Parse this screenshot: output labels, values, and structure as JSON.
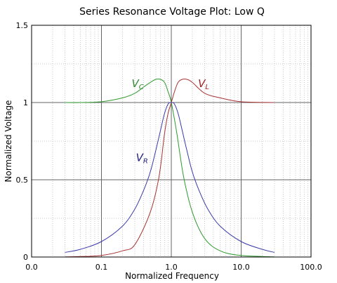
{
  "chart_data": {
    "type": "line",
    "title": "Series Resonance Voltage Plot: Low Q",
    "xlabel": "Normalized Frequency",
    "ylabel": "Normalized Voltage",
    "x_scale": "log",
    "xlim": [
      0.01,
      100
    ],
    "ylim": [
      0,
      1.5
    ],
    "x_ticks": [
      "0.0",
      "0.1",
      "1.0",
      "10.0",
      "100.0"
    ],
    "y_ticks": [
      "0",
      "0.5",
      "1",
      "1.5"
    ],
    "grid": true,
    "series": [
      {
        "name": "VC",
        "label_main": "V",
        "label_sub": "C",
        "color": "#2e9a2e",
        "label_color": "#2e8a2e",
        "x": [
          0.03,
          0.05,
          0.1,
          0.2,
          0.3,
          0.4,
          0.5,
          0.6,
          0.7,
          0.8,
          0.9,
          1.0,
          1.2,
          1.5,
          2,
          3,
          5,
          10,
          30
        ],
        "y": [
          1.0,
          1.0,
          1.005,
          1.03,
          1.06,
          1.1,
          1.13,
          1.15,
          1.15,
          1.13,
          1.07,
          1.0,
          0.8,
          0.52,
          0.29,
          0.12,
          0.04,
          0.01,
          0.001
        ]
      },
      {
        "name": "VL",
        "label_main": "V",
        "label_sub": "L",
        "color": "#a83232",
        "label_color": "#a02020",
        "x": [
          0.03,
          0.05,
          0.1,
          0.2,
          0.3,
          0.5,
          0.667,
          0.8,
          0.9,
          1.0,
          1.11,
          1.25,
          1.43,
          1.67,
          2,
          3,
          5,
          10,
          30
        ],
        "y": [
          0.001,
          0.003,
          0.01,
          0.04,
          0.08,
          0.29,
          0.52,
          0.8,
          0.93,
          1.0,
          1.07,
          1.13,
          1.15,
          1.15,
          1.13,
          1.06,
          1.03,
          1.005,
          1.0
        ]
      },
      {
        "name": "VR",
        "label_main": "V",
        "label_sub": "R",
        "color": "#3a3aa8",
        "label_color": "#20207a",
        "x": [
          0.03,
          0.05,
          0.1,
          0.2,
          0.3,
          0.4,
          0.5,
          0.6,
          0.7,
          0.8,
          0.9,
          1.0,
          1.11,
          1.25,
          1.43,
          1.67,
          2,
          2.5,
          3.33,
          5,
          10,
          20,
          30
        ],
        "y": [
          0.03,
          0.05,
          0.1,
          0.2,
          0.31,
          0.43,
          0.55,
          0.69,
          0.82,
          0.93,
          0.99,
          1.0,
          0.99,
          0.93,
          0.82,
          0.69,
          0.55,
          0.43,
          0.31,
          0.2,
          0.1,
          0.05,
          0.03
        ]
      }
    ]
  }
}
